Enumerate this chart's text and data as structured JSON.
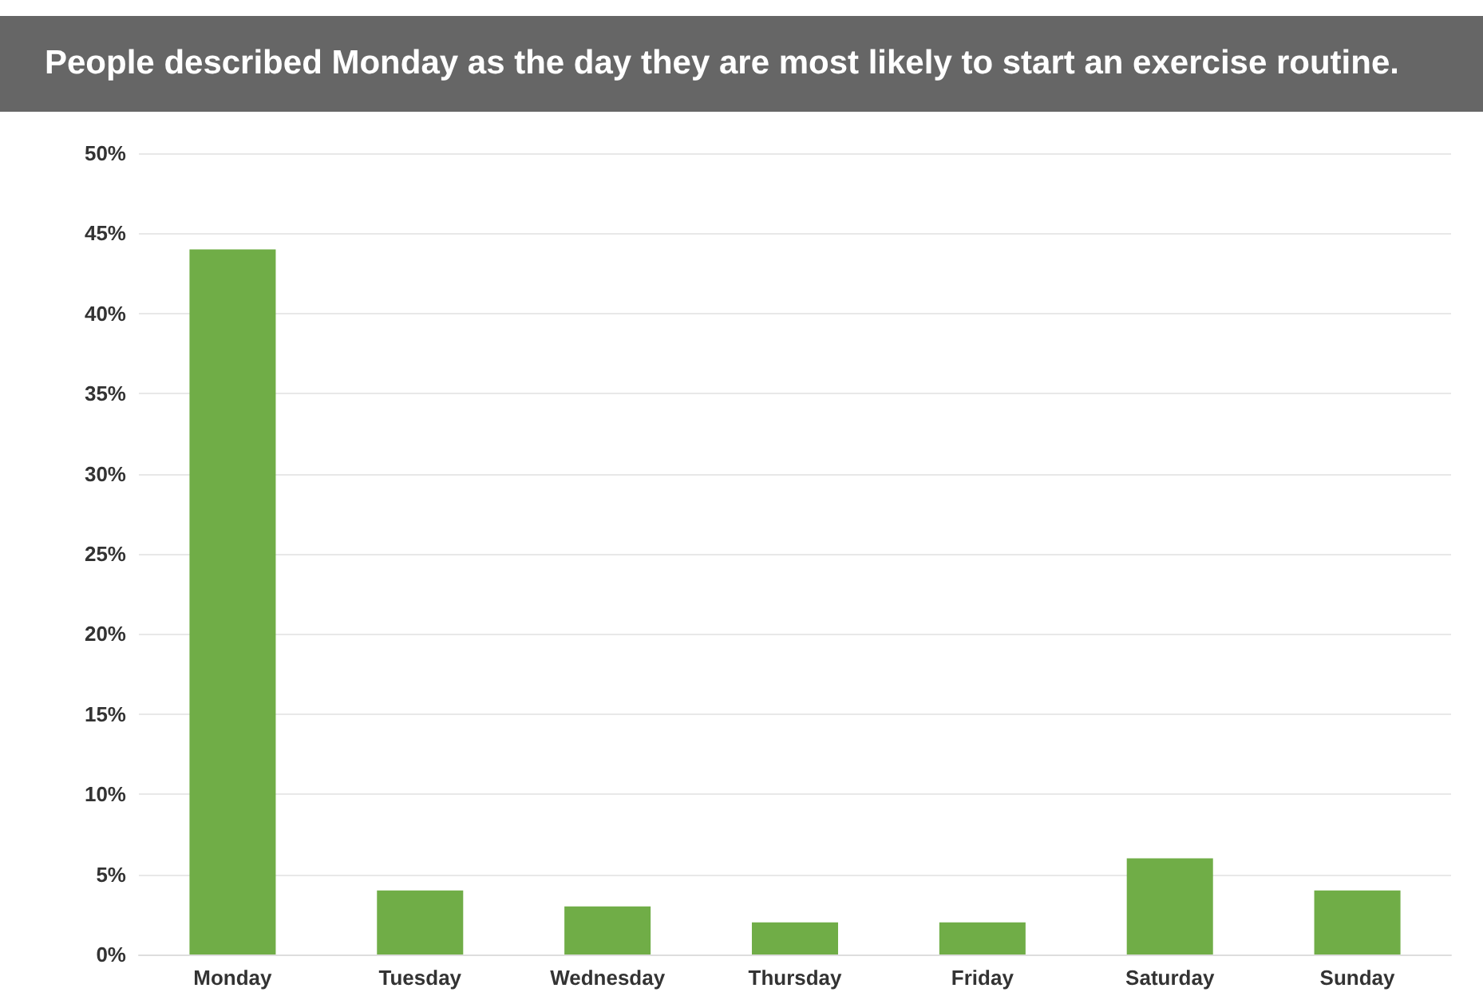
{
  "chart_data": {
    "type": "bar",
    "title": "People described Monday as the day they are most likely to start an exercise routine.",
    "categories": [
      "Monday",
      "Tuesday",
      "Wednesday",
      "Thursday",
      "Friday",
      "Saturday",
      "Sunday"
    ],
    "values": [
      44,
      4,
      3,
      2,
      2,
      6,
      4
    ],
    "color": "#70ad47",
    "ylim": [
      0,
      50
    ],
    "yticks": [
      {
        "value": 0,
        "label": "0%"
      },
      {
        "value": 5,
        "label": "5%"
      },
      {
        "value": 10,
        "label": "10%"
      },
      {
        "value": 15,
        "label": "15%"
      },
      {
        "value": 20,
        "label": "20%"
      },
      {
        "value": 25,
        "label": "25%"
      },
      {
        "value": 30,
        "label": "30%"
      },
      {
        "value": 35,
        "label": "35%"
      },
      {
        "value": 40,
        "label": "40%"
      },
      {
        "value": 45,
        "label": "45%"
      },
      {
        "value": 50,
        "label": "50%"
      }
    ],
    "grid": "y"
  }
}
